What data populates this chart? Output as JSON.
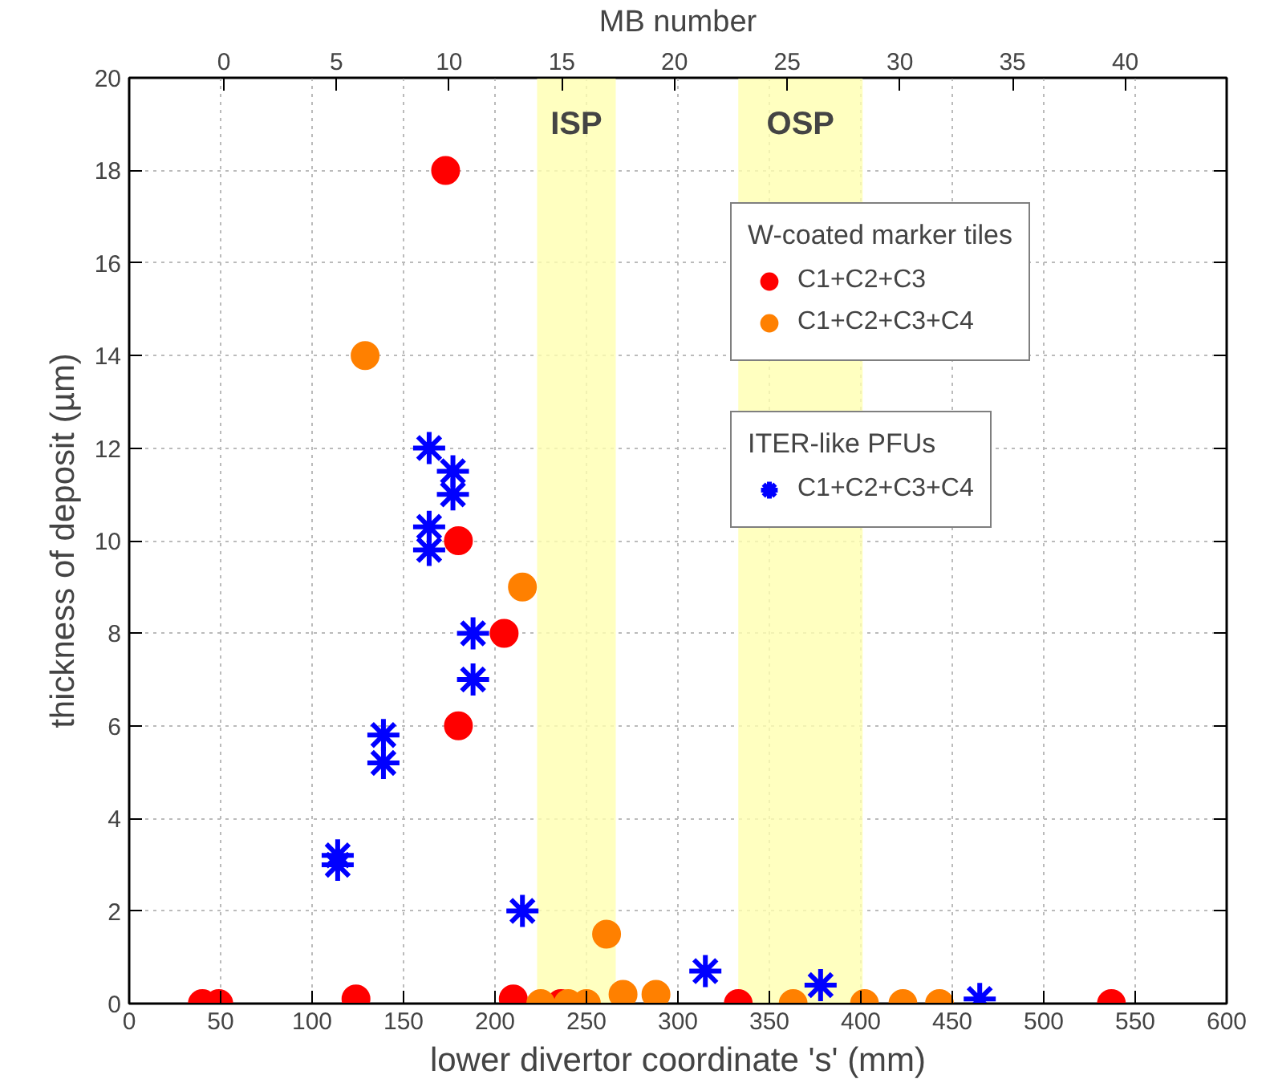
{
  "chart_data": {
    "type": "scatter",
    "xlabel": "lower divertor coordinate 's' (mm)",
    "ylabel": "thickness of deposit (µm)",
    "x2label": "MB number",
    "xlim": [
      0,
      600
    ],
    "xticks": [
      0,
      50,
      100,
      150,
      200,
      250,
      300,
      350,
      400,
      450,
      500,
      550,
      600
    ],
    "x2lim": [
      -4.2,
      44.5
    ],
    "x2ticks": [
      0,
      5,
      10,
      15,
      20,
      25,
      30,
      35,
      40
    ],
    "ylim": [
      0,
      20
    ],
    "yticks": [
      0,
      2,
      4,
      6,
      8,
      10,
      12,
      14,
      16,
      18,
      20
    ],
    "grid": true,
    "legend": "top right",
    "legend_title": [
      "W-coated marker tiles",
      "ITER-like PFUs"
    ],
    "bands": [
      {
        "axis": "x",
        "from": 223,
        "to": 266,
        "label": "ISP",
        "color": "#ffffb0"
      },
      {
        "axis": "x",
        "from": 333,
        "to": 401,
        "label": "OSP",
        "color": "#ffffb0"
      }
    ],
    "series": [
      {
        "name": "C1+C2+C3",
        "color": "#ff0000",
        "marker": "circle",
        "x": [
          40,
          49,
          124,
          173,
          180,
          180,
          205,
          210,
          236,
          333,
          537
        ],
        "values": [
          0,
          0,
          0.1,
          18,
          10,
          6,
          8,
          0.1,
          0,
          0,
          0
        ]
      },
      {
        "name": "C1+C2+C3+C4",
        "color": "#ff8000",
        "marker": "circle",
        "x": [
          129,
          215,
          261,
          225,
          240,
          250,
          270,
          288,
          363,
          402,
          423,
          443
        ],
        "values": [
          14,
          9,
          1.5,
          0,
          0,
          0,
          0.2,
          0.2,
          0,
          0,
          0,
          0
        ]
      },
      {
        "name": "C1+C2+C3+C4",
        "color": "#0000ff",
        "marker": "cross",
        "x": [
          164,
          177,
          177,
          164,
          164,
          188,
          188,
          139,
          139,
          114,
          114,
          215,
          315,
          378,
          465
        ],
        "values": [
          12,
          11.5,
          11,
          10.3,
          9.8,
          8,
          7,
          5.8,
          5.2,
          3.2,
          3.0,
          2,
          0.7,
          0.4,
          0.1
        ]
      }
    ]
  }
}
